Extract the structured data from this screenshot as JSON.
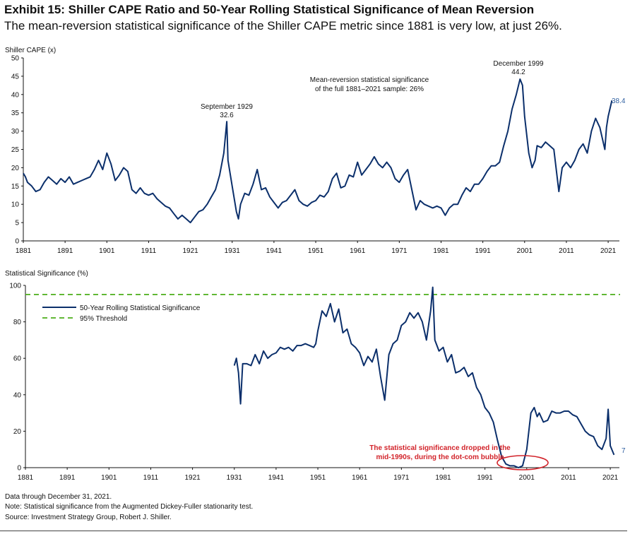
{
  "header": {
    "title": "Exhibit 15: Shiller CAPE Ratio and 50-Year Rolling Statistical Significance of Mean Reversion",
    "subtitle": "The mean-reversion statistical significance of the Shiller CAPE metric since 1881 is very low, at just 26%."
  },
  "colors": {
    "series": "#0b2f6b",
    "threshold": "#4caf1a",
    "annotation_red": "#d2232a",
    "end_label": "#2e5fa0"
  },
  "chart_data": [
    {
      "type": "line",
      "ylabel": "Shiller CAPE (x)",
      "xlim": [
        1881,
        2022
      ],
      "ylim": [
        0,
        50
      ],
      "yticks": [
        "0",
        "5",
        "10",
        "15",
        "20",
        "25",
        "30",
        "35",
        "40",
        "45",
        "50"
      ],
      "xticks": [
        "1881",
        "1891",
        "1901",
        "1911",
        "1921",
        "1931",
        "1941",
        "1951",
        "1961",
        "1971",
        "1981",
        "1991",
        "2001",
        "2011",
        "2021"
      ],
      "grid": false,
      "series": [
        {
          "x": [
            1881.0,
            1881.5,
            1882.0,
            1883.0,
            1884.0,
            1885.0,
            1886.0,
            1887.0,
            1888.0,
            1889.0,
            1890.0,
            1891.0,
            1892.0,
            1893.0,
            1894.0,
            1895.0,
            1896.0,
            1897.0,
            1898.0,
            1899.0,
            1900.0,
            1901.0,
            1902.0,
            1903.0,
            1904.0,
            1905.0,
            1906.0,
            1907.0,
            1908.0,
            1909.0,
            1910.0,
            1911.0,
            1912.0,
            1913.0,
            1914.0,
            1915.0,
            1916.0,
            1917.0,
            1918.0,
            1919.0,
            1920.0,
            1921.0,
            1922.0,
            1923.0,
            1924.0,
            1925.0,
            1926.0,
            1927.0,
            1928.0,
            1929.0,
            1929.7,
            1930.0,
            1931.0,
            1932.0,
            1932.5,
            1933.0,
            1934.0,
            1935.0,
            1936.0,
            1937.0,
            1938.0,
            1939.0,
            1940.0,
            1941.0,
            1942.0,
            1943.0,
            1944.0,
            1945.0,
            1946.0,
            1947.0,
            1948.0,
            1949.0,
            1950.0,
            1951.0,
            1952.0,
            1953.0,
            1954.0,
            1955.0,
            1956.0,
            1957.0,
            1958.0,
            1959.0,
            1960.0,
            1961.0,
            1962.0,
            1963.0,
            1964.0,
            1965.0,
            1966.0,
            1967.0,
            1968.0,
            1969.0,
            1970.0,
            1971.0,
            1972.0,
            1973.0,
            1974.0,
            1975.0,
            1976.0,
            1977.0,
            1978.0,
            1979.0,
            1980.0,
            1981.0,
            1982.0,
            1983.0,
            1984.0,
            1985.0,
            1986.0,
            1987.0,
            1988.0,
            1989.0,
            1990.0,
            1991.0,
            1992.0,
            1993.0,
            1994.0,
            1995.0,
            1996.0,
            1997.0,
            1998.0,
            1999.0,
            1999.9,
            2000.5,
            2001.0,
            2002.0,
            2002.8,
            2003.5,
            2004.0,
            2005.0,
            2006.0,
            2007.0,
            2008.0,
            2009.2,
            2010.0,
            2011.0,
            2012.0,
            2013.0,
            2014.0,
            2015.0,
            2016.0,
            2017.0,
            2018.0,
            2019.0,
            2020.2,
            2020.6,
            2021.0,
            2021.9
          ],
          "y": [
            18.5,
            17.5,
            16.0,
            15.0,
            13.5,
            14.0,
            16.0,
            17.5,
            16.5,
            15.5,
            17.0,
            16.0,
            17.5,
            15.5,
            16.0,
            16.5,
            17.0,
            17.5,
            19.5,
            22.0,
            19.5,
            24.0,
            21.0,
            16.5,
            18.0,
            20.0,
            19.0,
            14.0,
            13.0,
            14.5,
            13.0,
            12.5,
            13.0,
            11.5,
            10.5,
            9.5,
            9.0,
            7.5,
            6.0,
            7.0,
            6.0,
            5.0,
            6.5,
            8.0,
            8.5,
            10.0,
            12.0,
            14.0,
            18.0,
            24.0,
            32.6,
            22.0,
            15.0,
            8.0,
            6.0,
            10.0,
            13.0,
            12.5,
            15.5,
            19.5,
            14.0,
            14.5,
            12.0,
            10.5,
            9.0,
            10.5,
            11.0,
            12.5,
            14.0,
            11.0,
            10.0,
            9.5,
            10.5,
            11.0,
            12.5,
            12.0,
            13.5,
            17.0,
            18.5,
            14.5,
            15.0,
            18.0,
            17.5,
            21.5,
            18.0,
            19.5,
            21.0,
            23.0,
            21.0,
            20.0,
            21.5,
            20.0,
            17.0,
            16.0,
            18.0,
            19.5,
            14.0,
            8.5,
            11.0,
            10.0,
            9.5,
            9.0,
            9.5,
            9.0,
            7.0,
            9.0,
            10.0,
            10.0,
            12.5,
            14.5,
            13.5,
            15.5,
            15.5,
            17.0,
            19.0,
            20.5,
            20.5,
            21.5,
            26.0,
            30.0,
            36.0,
            40.0,
            44.2,
            42.5,
            34.0,
            24.0,
            20.0,
            22.0,
            26.0,
            25.5,
            27.0,
            26.0,
            25.0,
            13.5,
            20.0,
            21.5,
            20.0,
            22.0,
            25.0,
            26.5,
            24.0,
            30.0,
            33.5,
            31.0,
            25.0,
            31.0,
            34.0,
            38.4
          ]
        }
      ],
      "annotations": [
        {
          "lines": [
            "September 1929",
            "32.6"
          ]
        },
        {
          "lines": [
            "December 1999",
            "44.2"
          ]
        },
        {
          "lines": [
            "Mean-reversion statistical significance",
            "of the full 1881–2021 sample: 26%"
          ]
        },
        {
          "lines": [
            "38.4"
          ]
        }
      ]
    },
    {
      "type": "line",
      "ylabel": "Statistical Significance (%)",
      "xlim": [
        1881,
        2022
      ],
      "ylim": [
        0,
        100
      ],
      "yticks": [
        "0",
        "20",
        "40",
        "60",
        "80",
        "100"
      ],
      "xticks": [
        "1881",
        "1891",
        "1901",
        "1911",
        "1921",
        "1931",
        "1941",
        "1951",
        "1961",
        "1971",
        "1981",
        "1991",
        "2001",
        "2011",
        "2021"
      ],
      "grid": false,
      "legend": "upper-left",
      "series": [
        {
          "name": "50-Year Rolling Statistical Significance",
          "x": [
            1931.0,
            1931.5,
            1932.0,
            1932.5,
            1933.0,
            1934.0,
            1935.0,
            1936.0,
            1937.0,
            1938.0,
            1939.0,
            1940.0,
            1941.0,
            1942.0,
            1943.0,
            1944.0,
            1945.0,
            1946.0,
            1947.0,
            1948.0,
            1949.0,
            1950.0,
            1950.5,
            1951.0,
            1952.0,
            1953.0,
            1954.0,
            1955.0,
            1956.0,
            1957.0,
            1958.0,
            1959.0,
            1960.0,
            1961.0,
            1962.0,
            1963.0,
            1964.0,
            1965.0,
            1966.0,
            1967.0,
            1968.0,
            1969.0,
            1970.0,
            1971.0,
            1972.0,
            1973.0,
            1974.0,
            1975.0,
            1976.0,
            1977.0,
            1978.0,
            1978.5,
            1979.0,
            1980.0,
            1981.0,
            1982.0,
            1983.0,
            1984.0,
            1985.0,
            1986.0,
            1987.0,
            1988.0,
            1989.0,
            1990.0,
            1991.0,
            1992.0,
            1993.0,
            1994.0,
            1995.0,
            1996.0,
            1997.0,
            1998.0,
            1999.0,
            2000.0,
            2001.0,
            2002.0,
            2002.8,
            2003.5,
            2004.0,
            2005.0,
            2006.0,
            2007.0,
            2008.0,
            2009.0,
            2010.0,
            2011.0,
            2012.0,
            2013.0,
            2014.0,
            2015.0,
            2016.0,
            2017.0,
            2018.0,
            2019.0,
            2020.0,
            2020.5,
            2021.0,
            2021.9
          ],
          "y": [
            56,
            60,
            52,
            35,
            57,
            57,
            56,
            62,
            57,
            64,
            60,
            62,
            63,
            66,
            65,
            66,
            64,
            67,
            67,
            68,
            67,
            66,
            68,
            75,
            86,
            83,
            90,
            80,
            87,
            74,
            76,
            68,
            66,
            63,
            56,
            61,
            58,
            65,
            50,
            37,
            62,
            68,
            70,
            78,
            80,
            85,
            82,
            85,
            80,
            70,
            86,
            99,
            70,
            64,
            66,
            58,
            62,
            52,
            53,
            55,
            50,
            52,
            44,
            40,
            33,
            30,
            25,
            15,
            6,
            2,
            1,
            1,
            0,
            1,
            10,
            30,
            33,
            28,
            30,
            25,
            26,
            31,
            30,
            30,
            31,
            31,
            29,
            28,
            24,
            20,
            18,
            17,
            12,
            10,
            16,
            32,
            12,
            7
          ]
        },
        {
          "name": "95% Threshold",
          "x": [
            1881,
            2022
          ],
          "y": [
            95,
            95
          ]
        }
      ],
      "annotations": [
        {
          "lines": [
            "The statistical significance dropped in the",
            "mid-1990s, during the dot-com bubble"
          ]
        },
        {
          "lines": [
            "7"
          ]
        }
      ]
    }
  ],
  "footnotes": [
    "Data through December 31, 2021.",
    "Note: Statistical significance from the Augmented Dickey-Fuller stationarity test.",
    "Source: Investment Strategy Group, Robert J. Shiller."
  ]
}
